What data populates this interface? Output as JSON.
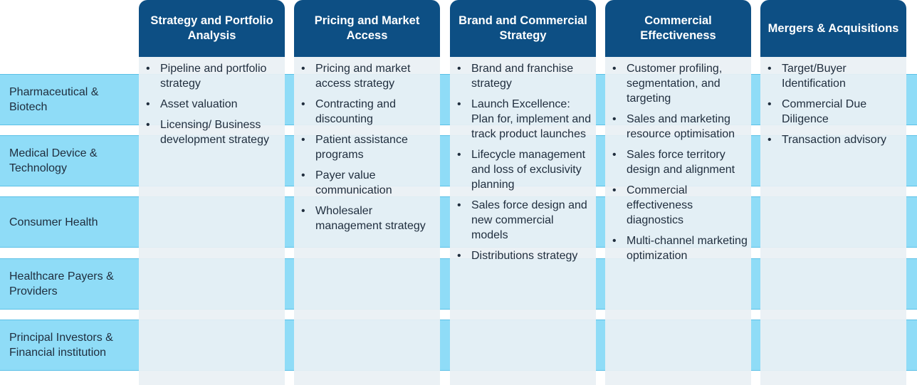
{
  "segments": [
    "Pharmaceutical & Biotech",
    "Medical Device & Technology",
    "Consumer Health",
    "Healthcare Payers & Providers",
    "Principal Investors & Financial institution"
  ],
  "bullet": "•",
  "columns": [
    {
      "title": "Strategy and Portfolio Analysis",
      "items": [
        "Pipeline and portfolio strategy",
        "Asset valuation",
        "Licensing/ Business development strategy"
      ]
    },
    {
      "title": "Pricing and Market Access",
      "items": [
        "Pricing and market access strategy",
        "Contracting and discounting",
        "Patient assistance programs",
        "Payer value communication",
        "Wholesaler management strategy"
      ]
    },
    {
      "title": "Brand and Commercial Strategy",
      "items": [
        "Brand and franchise strategy",
        "Launch Excellence: Plan for, implement and track product launches",
        "Lifecycle management and loss of exclusivity planning",
        "Sales force design and new commercial models",
        "Distributions strategy"
      ]
    },
    {
      "title": "Commercial Effectiveness",
      "items": [
        "Customer profiling, segmentation, and targeting",
        "Sales and marketing resource optimisation",
        "Sales force territory design and alignment",
        "Commercial effectiveness diagnostics",
        "Multi-channel marketing optimization"
      ]
    },
    {
      "title": "Mergers & Acquisitions",
      "items": [
        "Target/Buyer Identification",
        "Commercial Due Diligence",
        "Transaction advisory"
      ]
    }
  ],
  "colors": {
    "header": "#0d4f84",
    "row_band": "#8fdcf7",
    "column_body": "#eaf0f4"
  }
}
